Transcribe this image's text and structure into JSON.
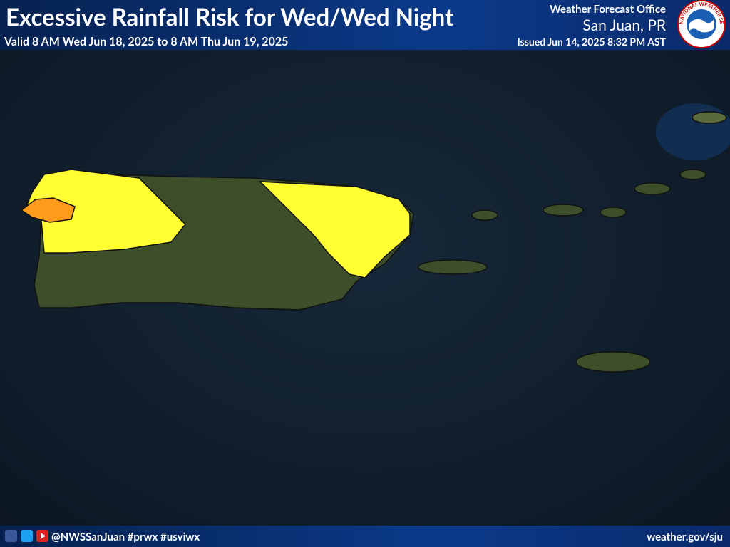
{
  "header": {
    "title": "Excessive Rainfall Risk for Wed/Wed Night",
    "valid": "Valid 8 AM Wed Jun 18, 2025 to 8 AM Thu Jun 19, 2025",
    "office": "Weather Forecast Office",
    "location": "San Juan, PR",
    "issued": "Issued Jun 14, 2025 8:32 PM AST"
  },
  "logo": {
    "text": "NATIONAL WEATHER SERVICE"
  },
  "footer": {
    "social": "@NWSSanJuan #prwx #usviwx",
    "url": "weather.gov/sju"
  }
}
